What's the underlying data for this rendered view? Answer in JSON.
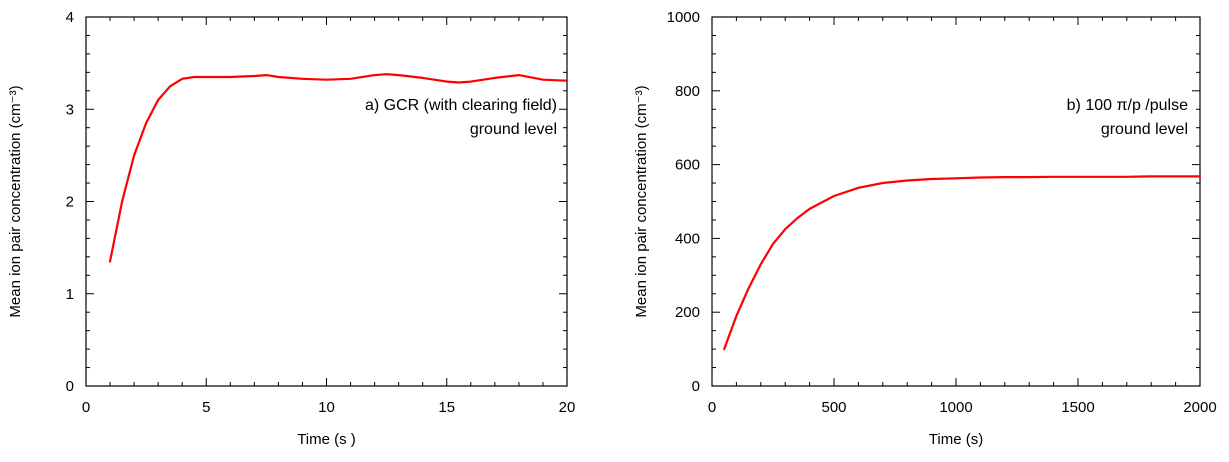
{
  "chart_data": [
    {
      "type": "line",
      "xlabel": "Time (s )",
      "ylabel": "Mean ion pair concentration (cm⁻³)",
      "xlim": [
        0,
        20
      ],
      "ylim": [
        0,
        4
      ],
      "xticks": [
        0,
        5,
        10,
        15,
        20
      ],
      "xtick_labels": [
        "0",
        "5",
        "10",
        "15",
        "20"
      ],
      "yticks": [
        0,
        1,
        2,
        3,
        4
      ],
      "ytick_labels": [
        "0",
        "1",
        "2",
        "3",
        "4"
      ],
      "x_minor_step": 1,
      "y_minor_step": 0.2,
      "grid": false,
      "annotations": [
        "a) GCR (with clearing field)",
        "ground level"
      ],
      "series": [
        {
          "color": "#ff0000",
          "x": [
            1,
            1.5,
            2,
            2.5,
            3,
            3.5,
            4,
            4.5,
            5,
            6,
            7,
            7.5,
            8,
            9,
            10,
            11,
            12,
            12.5,
            13,
            14,
            15,
            15.5,
            16,
            17,
            18,
            19,
            20
          ],
          "y": [
            1.35,
            2.0,
            2.5,
            2.85,
            3.1,
            3.25,
            3.33,
            3.35,
            3.35,
            3.35,
            3.36,
            3.37,
            3.35,
            3.33,
            3.32,
            3.33,
            3.37,
            3.38,
            3.37,
            3.34,
            3.3,
            3.29,
            3.3,
            3.34,
            3.37,
            3.32,
            3.31
          ]
        }
      ]
    },
    {
      "type": "line",
      "xlabel": "Time (s)",
      "ylabel": "Mean ion pair concentration (cm⁻³)",
      "xlim": [
        0,
        2000
      ],
      "ylim": [
        0,
        1000
      ],
      "xticks": [
        0,
        500,
        1000,
        1500,
        2000
      ],
      "xtick_labels": [
        "0",
        "500",
        "1000",
        "1500",
        "2000"
      ],
      "yticks": [
        0,
        200,
        400,
        600,
        800,
        1000
      ],
      "ytick_labels": [
        "0",
        "200",
        "400",
        "600",
        "800",
        "1000"
      ],
      "x_minor_step": 100,
      "y_minor_step": 50,
      "grid": false,
      "annotations": [
        "b) 100 π/p /pulse",
        "ground level"
      ],
      "series": [
        {
          "color": "#ff0000",
          "x": [
            50,
            100,
            150,
            200,
            250,
            300,
            350,
            400,
            500,
            600,
            700,
            800,
            900,
            1000,
            1100,
            1200,
            1300,
            1400,
            1500,
            1600,
            1700,
            1800,
            1900,
            2000
          ],
          "y": [
            100,
            190,
            265,
            330,
            385,
            425,
            455,
            480,
            515,
            537,
            550,
            557,
            561,
            563,
            565,
            566,
            566,
            567,
            567,
            567,
            567,
            568,
            568,
            568
          ]
        }
      ]
    }
  ]
}
